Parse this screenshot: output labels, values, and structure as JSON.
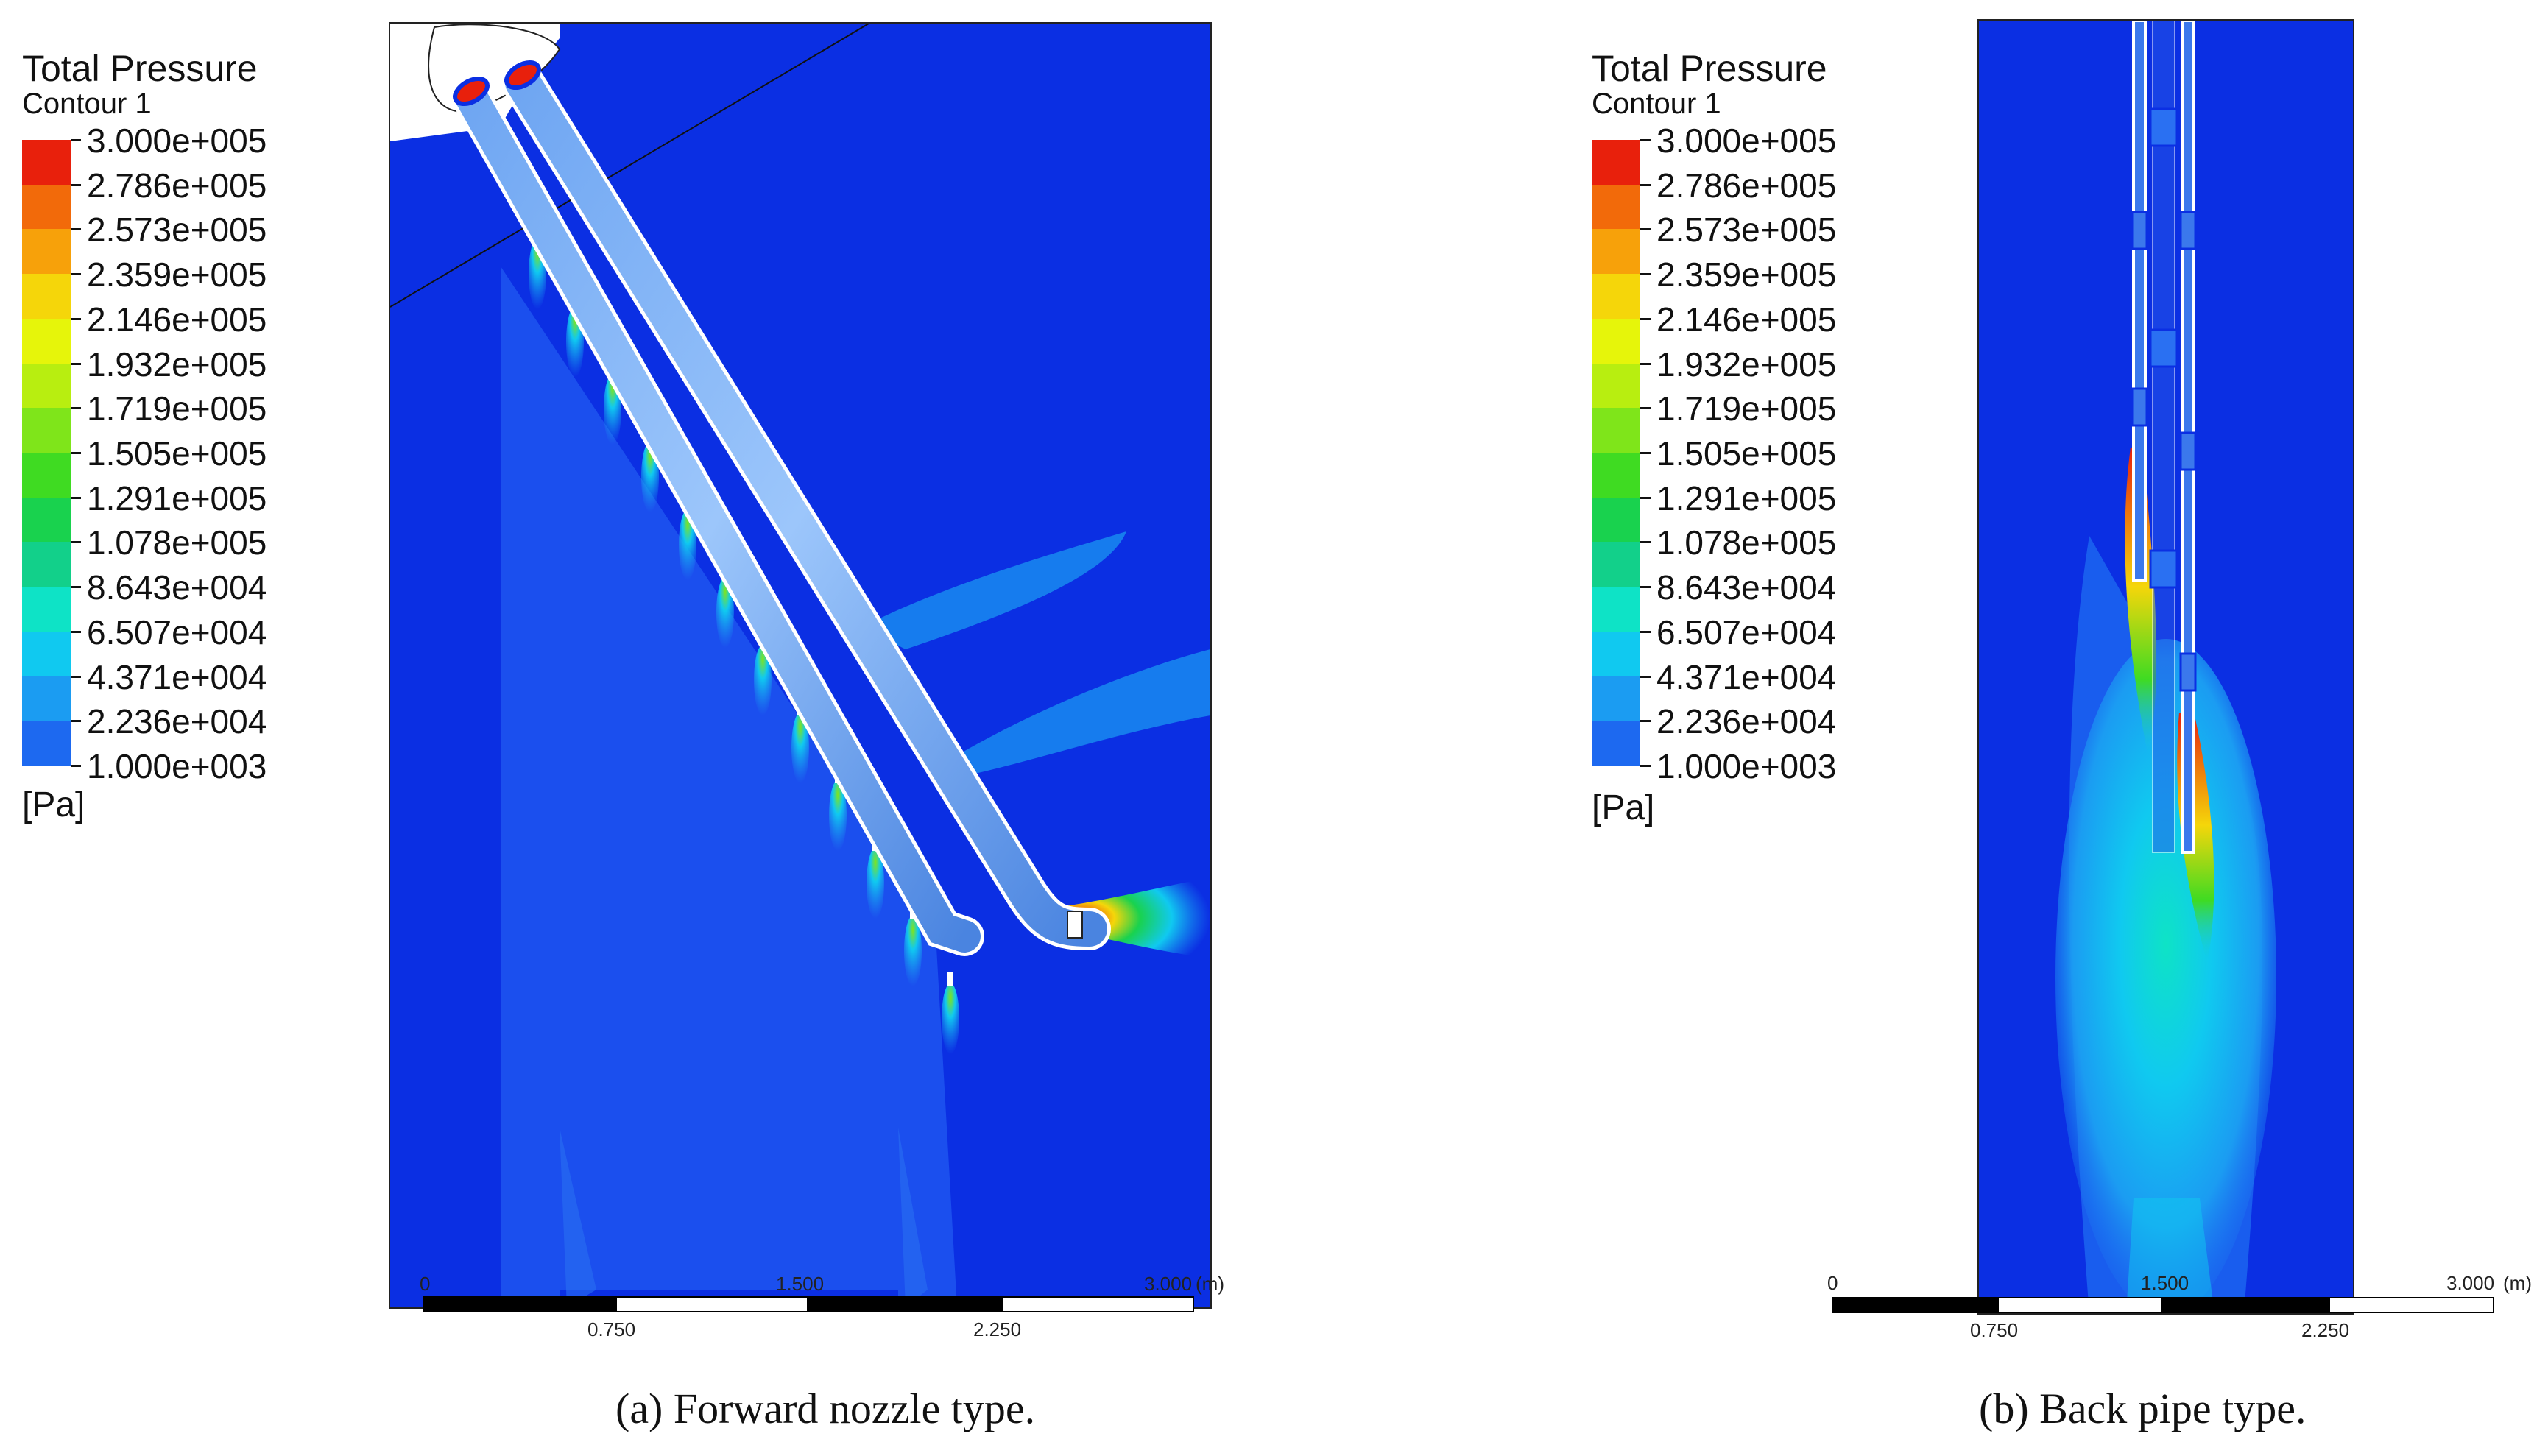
{
  "panels": [
    {
      "legend": {
        "title": "Total Pressure",
        "subtitle": "Contour 1",
        "unit": "[Pa]",
        "levels": [
          "3.000e+005",
          "2.786e+005",
          "2.573e+005",
          "2.359e+005",
          "2.146e+005",
          "1.932e+005",
          "1.719e+005",
          "1.505e+005",
          "1.291e+005",
          "1.078e+005",
          "8.643e+004",
          "6.507e+004",
          "4.371e+004",
          "2.236e+004",
          "1.000e+003"
        ],
        "colors": [
          "#e8200c",
          "#f26a0a",
          "#f7a10a",
          "#f5d60a",
          "#e6f50a",
          "#b8ee10",
          "#7fe51a",
          "#3fdb22",
          "#19d24e",
          "#12d08a",
          "#0ee3c6",
          "#10c9f0",
          "#1b9cf2",
          "#1d69f0",
          "#1e3ff0"
        ]
      },
      "scale": {
        "top_labels": [
          "0",
          "1.500",
          "3.000"
        ],
        "unit": "(m)",
        "bottom_labels": [
          "0.750",
          "2.250"
        ]
      },
      "caption": "(a) Forward nozzle type."
    },
    {
      "legend": {
        "title": "Total Pressure",
        "subtitle": "Contour 1",
        "unit": "[Pa]",
        "levels": [
          "3.000e+005",
          "2.786e+005",
          "2.573e+005",
          "2.359e+005",
          "2.146e+005",
          "1.932e+005",
          "1.719e+005",
          "1.505e+005",
          "1.291e+005",
          "1.078e+005",
          "8.643e+004",
          "6.507e+004",
          "4.371e+004",
          "2.236e+004",
          "1.000e+003"
        ],
        "colors": [
          "#e8200c",
          "#f26a0a",
          "#f7a10a",
          "#f5d60a",
          "#e6f50a",
          "#b8ee10",
          "#7fe51a",
          "#3fdb22",
          "#19d24e",
          "#12d08a",
          "#0ee3c6",
          "#10c9f0",
          "#1b9cf2",
          "#1d69f0",
          "#1e3ff0"
        ]
      },
      "scale": {
        "top_labels": [
          "0",
          "1.500",
          "3.000"
        ],
        "unit": "(m)",
        "bottom_labels": [
          "0.750",
          "2.250"
        ]
      },
      "caption": "(b) Back pipe type."
    }
  ]
}
